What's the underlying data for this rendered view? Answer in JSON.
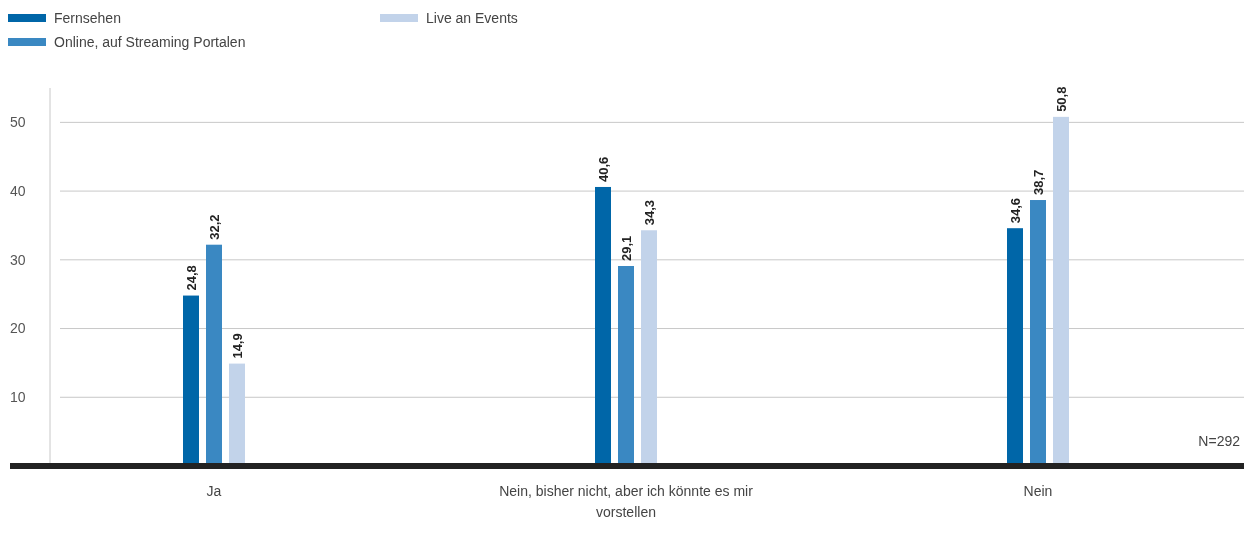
{
  "chart_data": {
    "type": "bar",
    "categories": [
      "Ja",
      "Nein, bisher nicht, aber ich könnte es mir vorstellen",
      "Nein"
    ],
    "series": [
      {
        "name": "Fernsehen",
        "color": "#0066a8",
        "values": [
          24.8,
          40.6,
          34.6
        ],
        "value_labels": [
          "24,8",
          "40,6",
          "34,6"
        ]
      },
      {
        "name": "Online, auf Streaming Portalen",
        "color": "#3a88c2",
        "values": [
          32.2,
          29.1,
          38.7
        ],
        "value_labels": [
          "32,2",
          "29,1",
          "38,7"
        ]
      },
      {
        "name": "Live an Events",
        "color": "#c2d3ea",
        "values": [
          14.9,
          34.3,
          50.8
        ],
        "value_labels": [
          "14,9",
          "34,3",
          "50,8"
        ]
      }
    ],
    "ylim": [
      0,
      55
    ],
    "yticks": [
      {
        "value": 0,
        "label": null
      },
      10,
      20,
      30,
      40,
      50
    ],
    "grid": "y",
    "legend": "top left",
    "annotations": [
      "N=292"
    ]
  }
}
